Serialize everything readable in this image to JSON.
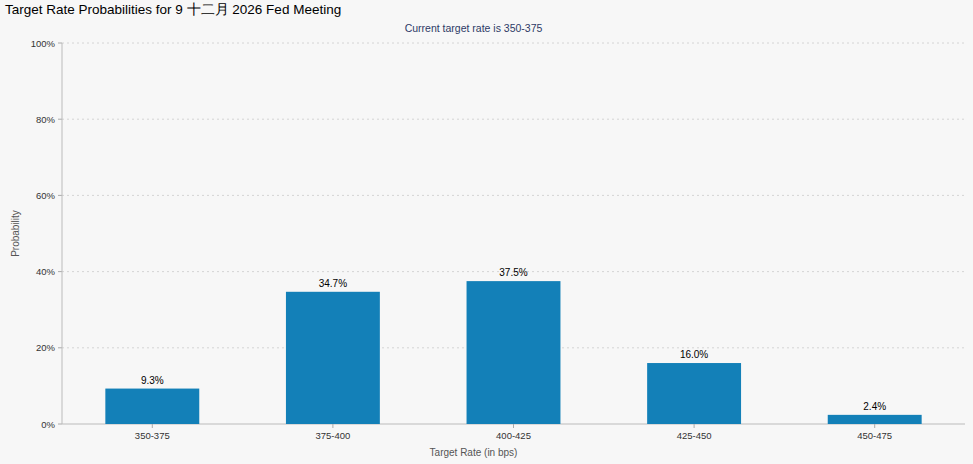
{
  "chart_data": {
    "type": "bar",
    "title": "Target Rate Probabilities for 9 十二月 2026 Fed Meeting",
    "subtitle": "Current target rate is 350-375",
    "x_label": "Target Rate (in bps)",
    "y_label": "Probability",
    "categories": [
      "350-375",
      "375-400",
      "400-425",
      "425-450",
      "450-475"
    ],
    "values": [
      9.3,
      34.7,
      37.5,
      16.0,
      2.4
    ],
    "value_labels": [
      "9.3%",
      "34.7%",
      "37.5%",
      "16.0%",
      "2.4%"
    ],
    "color": "#1380b8",
    "ylim": [
      0,
      100
    ],
    "yticks": [
      {
        "value": 0,
        "label": "0%"
      },
      {
        "value": 20,
        "label": "20%"
      },
      {
        "value": 40,
        "label": "40%"
      },
      {
        "value": 60,
        "label": "60%"
      },
      {
        "value": 80,
        "label": "80%"
      },
      {
        "value": 100,
        "label": "100%"
      }
    ],
    "grid": true,
    "data_labels": true
  }
}
